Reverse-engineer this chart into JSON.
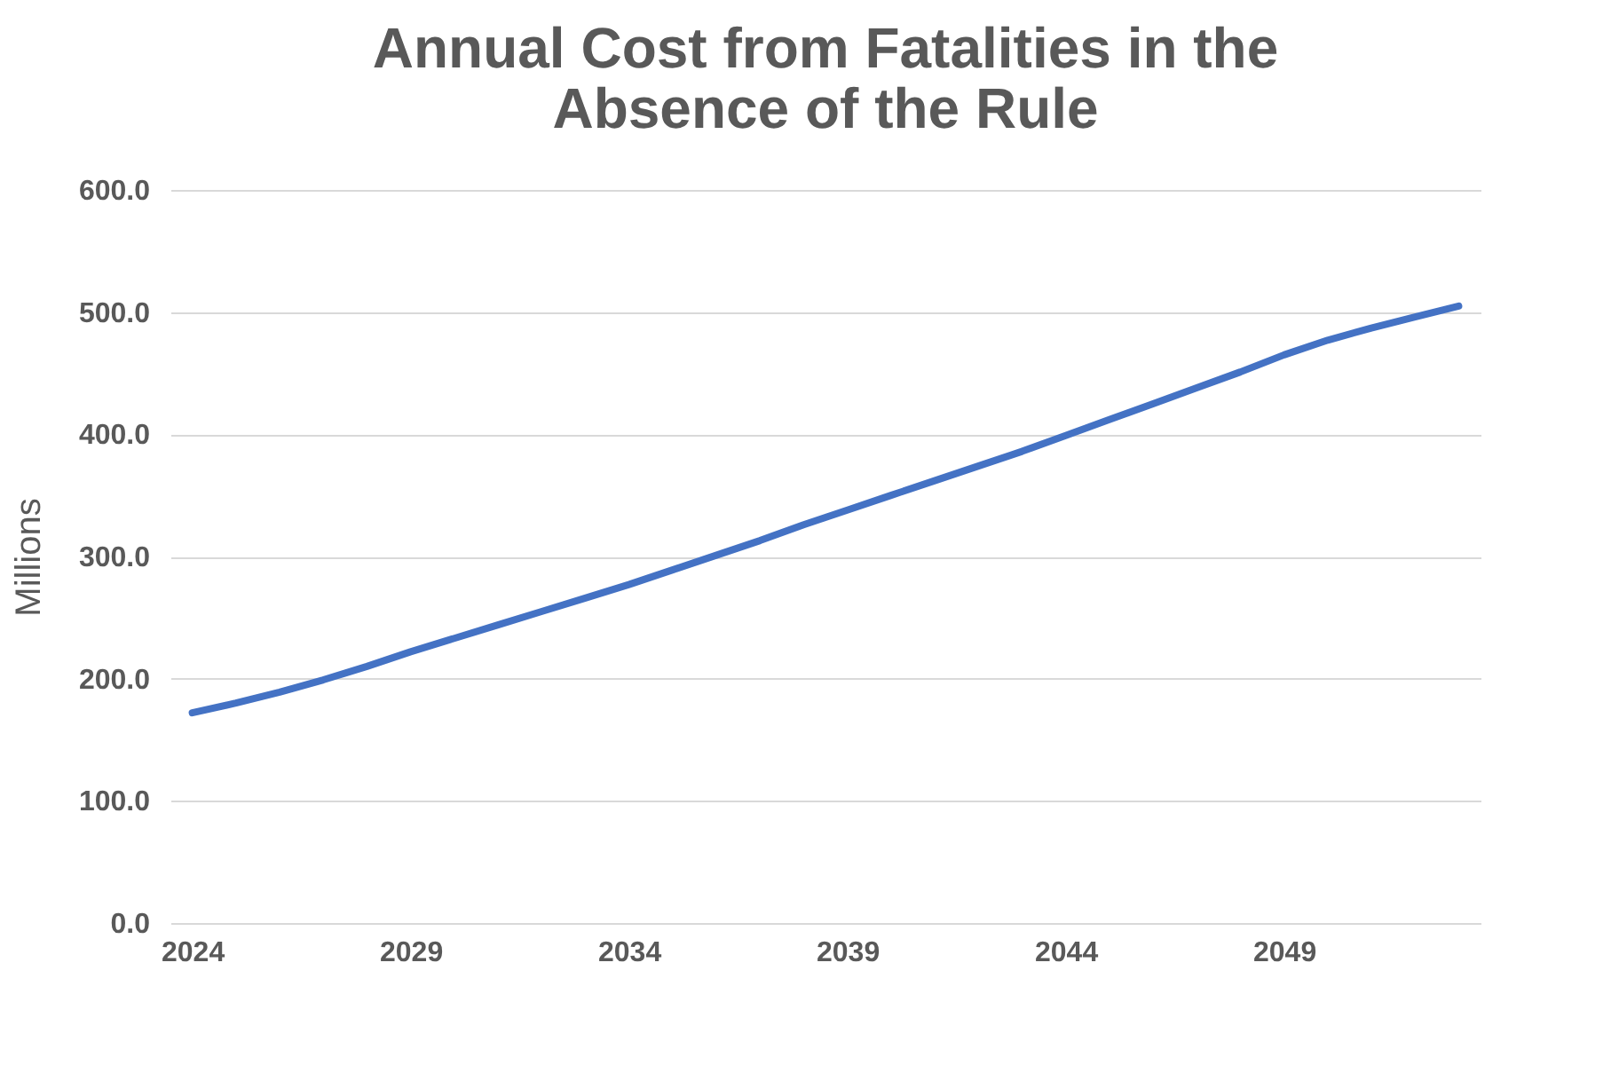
{
  "chart_data": {
    "type": "line",
    "title": "Annual Cost from Fatalities in the Absence of the Rule",
    "ylabel": "Millions",
    "x": [
      2024,
      2025,
      2026,
      2027,
      2028,
      2029,
      2030,
      2031,
      2032,
      2033,
      2034,
      2035,
      2036,
      2037,
      2038,
      2039,
      2040,
      2041,
      2042,
      2043,
      2044,
      2045,
      2046,
      2047,
      2048,
      2049,
      2050,
      2051,
      2052,
      2053
    ],
    "series": [
      {
        "color": "#4472c4",
        "values": [
          172,
          180,
          189,
          199,
          210,
          222,
          233,
          244,
          255,
          266,
          277,
          289,
          301,
          313,
          326,
          338,
          350,
          362,
          374,
          386,
          399,
          412,
          425,
          438,
          451,
          465,
          477,
          487,
          496,
          505
        ]
      }
    ],
    "xlim": [
      2023.5,
      2053.5
    ],
    "xticks": [
      2024,
      2029,
      2034,
      2039,
      2044,
      2049
    ],
    "ylim": [
      0,
      600
    ],
    "yticks": [
      {
        "value": 0,
        "label": "0.0"
      },
      {
        "value": 100,
        "label": "100.0"
      },
      {
        "value": 200,
        "label": "200.0"
      },
      {
        "value": 300,
        "label": "300.0"
      },
      {
        "value": 400,
        "label": "400.0"
      },
      {
        "value": 500,
        "label": "500.0"
      },
      {
        "value": 600,
        "label": "600.0"
      }
    ],
    "grid": "y",
    "marker": "none",
    "line_style": "solid"
  }
}
